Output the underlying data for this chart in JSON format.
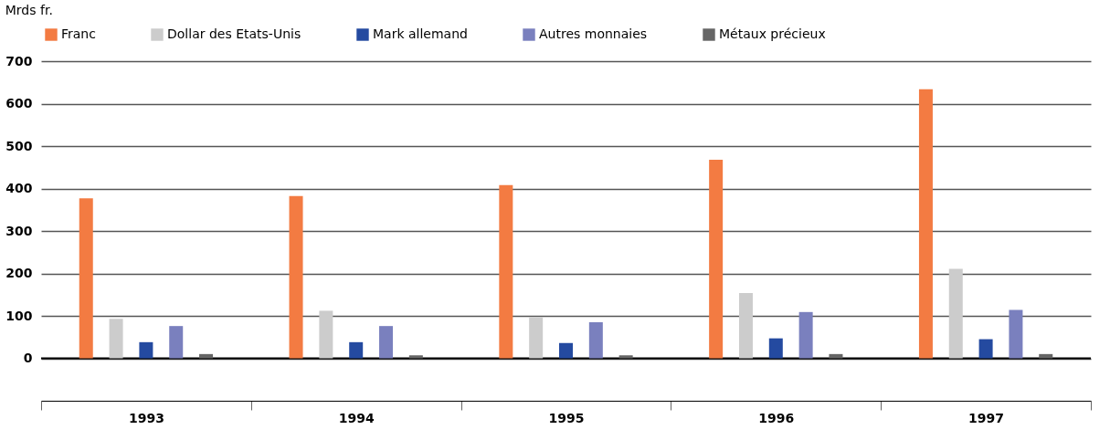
{
  "chart_data": {
    "type": "bar",
    "ylabel": "Mrds fr.",
    "categories": [
      "1993",
      "1994",
      "1995",
      "1996",
      "1997"
    ],
    "series": [
      {
        "name": "Franc",
        "color": "#f37b42",
        "values": [
          377,
          382,
          408,
          468,
          634
        ]
      },
      {
        "name": "Dollar des Etats-Unis",
        "color": "#cccccc",
        "values": [
          93,
          112,
          97,
          154,
          211
        ]
      },
      {
        "name": "Mark allemand",
        "color": "#244aa0",
        "values": [
          38,
          38,
          36,
          47,
          45
        ]
      },
      {
        "name": "Autres monnaies",
        "color": "#7a80be",
        "values": [
          76,
          76,
          85,
          109,
          114
        ]
      },
      {
        "name": "Métaux précieux",
        "color": "#666666",
        "values": [
          10,
          7,
          7,
          10,
          10
        ]
      }
    ],
    "ylim": [
      -100,
      700
    ],
    "yticks": [
      0,
      100,
      200,
      300,
      400,
      500,
      600,
      700
    ],
    "grid": "y",
    "legend": "top left"
  }
}
